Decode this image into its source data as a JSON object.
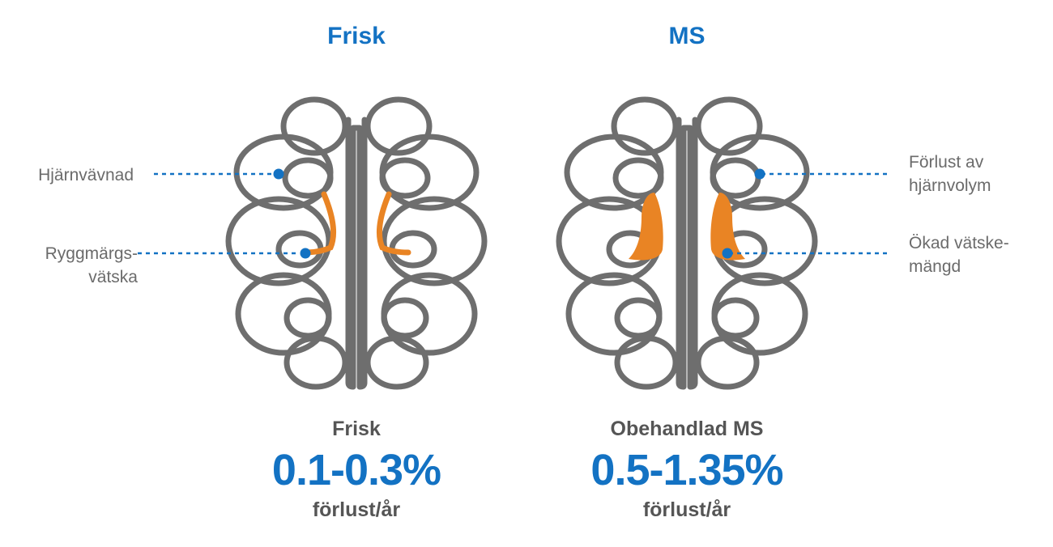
{
  "healthy": {
    "title": "Frisk",
    "labels": {
      "tissue": "Hjärnvävnad",
      "fluid_line1": "Ryggmärgs-",
      "fluid_line2": "vätska"
    },
    "stat": {
      "label": "Frisk",
      "value": "0.1-0.3%",
      "unit": "förlust/år"
    }
  },
  "ms": {
    "title": "MS",
    "labels": {
      "volume_line1": "Förlust av",
      "volume_line2": "hjärnvolym",
      "fluid_line1": "Ökad vätske-",
      "fluid_line2": "mängd"
    },
    "stat": {
      "label": "Obehandlad MS",
      "value": "0.5-1.35%",
      "unit": "förlust/år"
    }
  },
  "colors": {
    "accent": "#1372c3",
    "brain_outline": "#6e6e6e",
    "fluid": "#e98424",
    "label_text": "#6b6b6b"
  }
}
